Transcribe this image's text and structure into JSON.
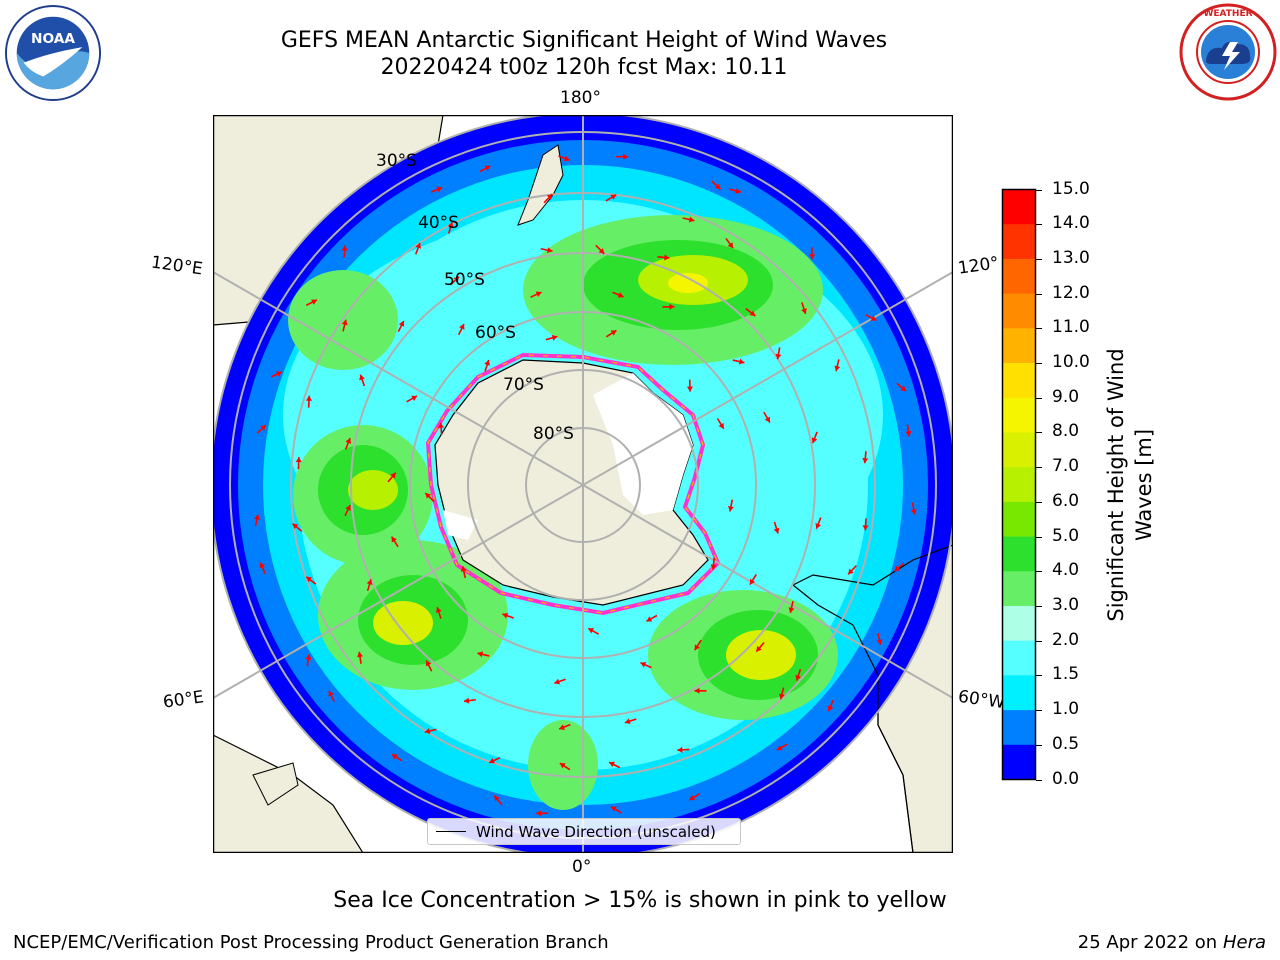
{
  "header": {
    "title_line1": "GEFS MEAN Antarctic Significant Height of Wind Waves",
    "title_line2": "20220424 t00z 120h fcst   Max: 10.11"
  },
  "logos": {
    "left": "noaa-logo",
    "right": "national-weather-service-logo",
    "right_text": "NATIONAL WEATHER SERVICE"
  },
  "map": {
    "projection": "south-polar-stereographic",
    "longitude_labels": {
      "top": "180°",
      "bottom": "0°",
      "upper_left": "120°E",
      "lower_left": "60°E",
      "upper_right": "120°",
      "lower_right": "60°W"
    },
    "latitude_labels": [
      "30°S",
      "40°S",
      "50°S",
      "60°S",
      "70°S",
      "80°S"
    ],
    "legend_label": "Wind Wave Direction (unscaled)",
    "colors": {
      "land": "#efeedc",
      "ice": "#ffffff",
      "grid": "#b0b0b0",
      "arrow": "#ff0000"
    }
  },
  "colorbar": {
    "title": "Significant Height of Wind Waves [m]",
    "title_line1": "Significant Height of Wind",
    "title_line2": "Waves [m]",
    "ticks": [
      "15.0",
      "14.0",
      "13.0",
      "12.0",
      "11.0",
      "10.0",
      "9.0",
      "8.0",
      "7.0",
      "6.0",
      "5.0",
      "4.0",
      "3.0",
      "2.0",
      "1.5",
      "1.0",
      "0.5",
      "0.0"
    ],
    "colors": [
      "#ff0000",
      "#ff3300",
      "#ff6600",
      "#ff8c00",
      "#ffb300",
      "#ffe000",
      "#f5f500",
      "#d9f000",
      "#b7f000",
      "#78e800",
      "#2de02d",
      "#66ee66",
      "#adffe6",
      "#55ffff",
      "#00f0ff",
      "#0080ff",
      "#0000ff"
    ]
  },
  "footer": {
    "note": "Sea Ice Concentration > 15% is shown in pink to yellow",
    "credit_left": "NCEP/EMC/Verification Post Processing Product Generation Branch",
    "credit_right_prefix": "25 Apr 2022 on ",
    "credit_right_host": "Hera"
  }
}
